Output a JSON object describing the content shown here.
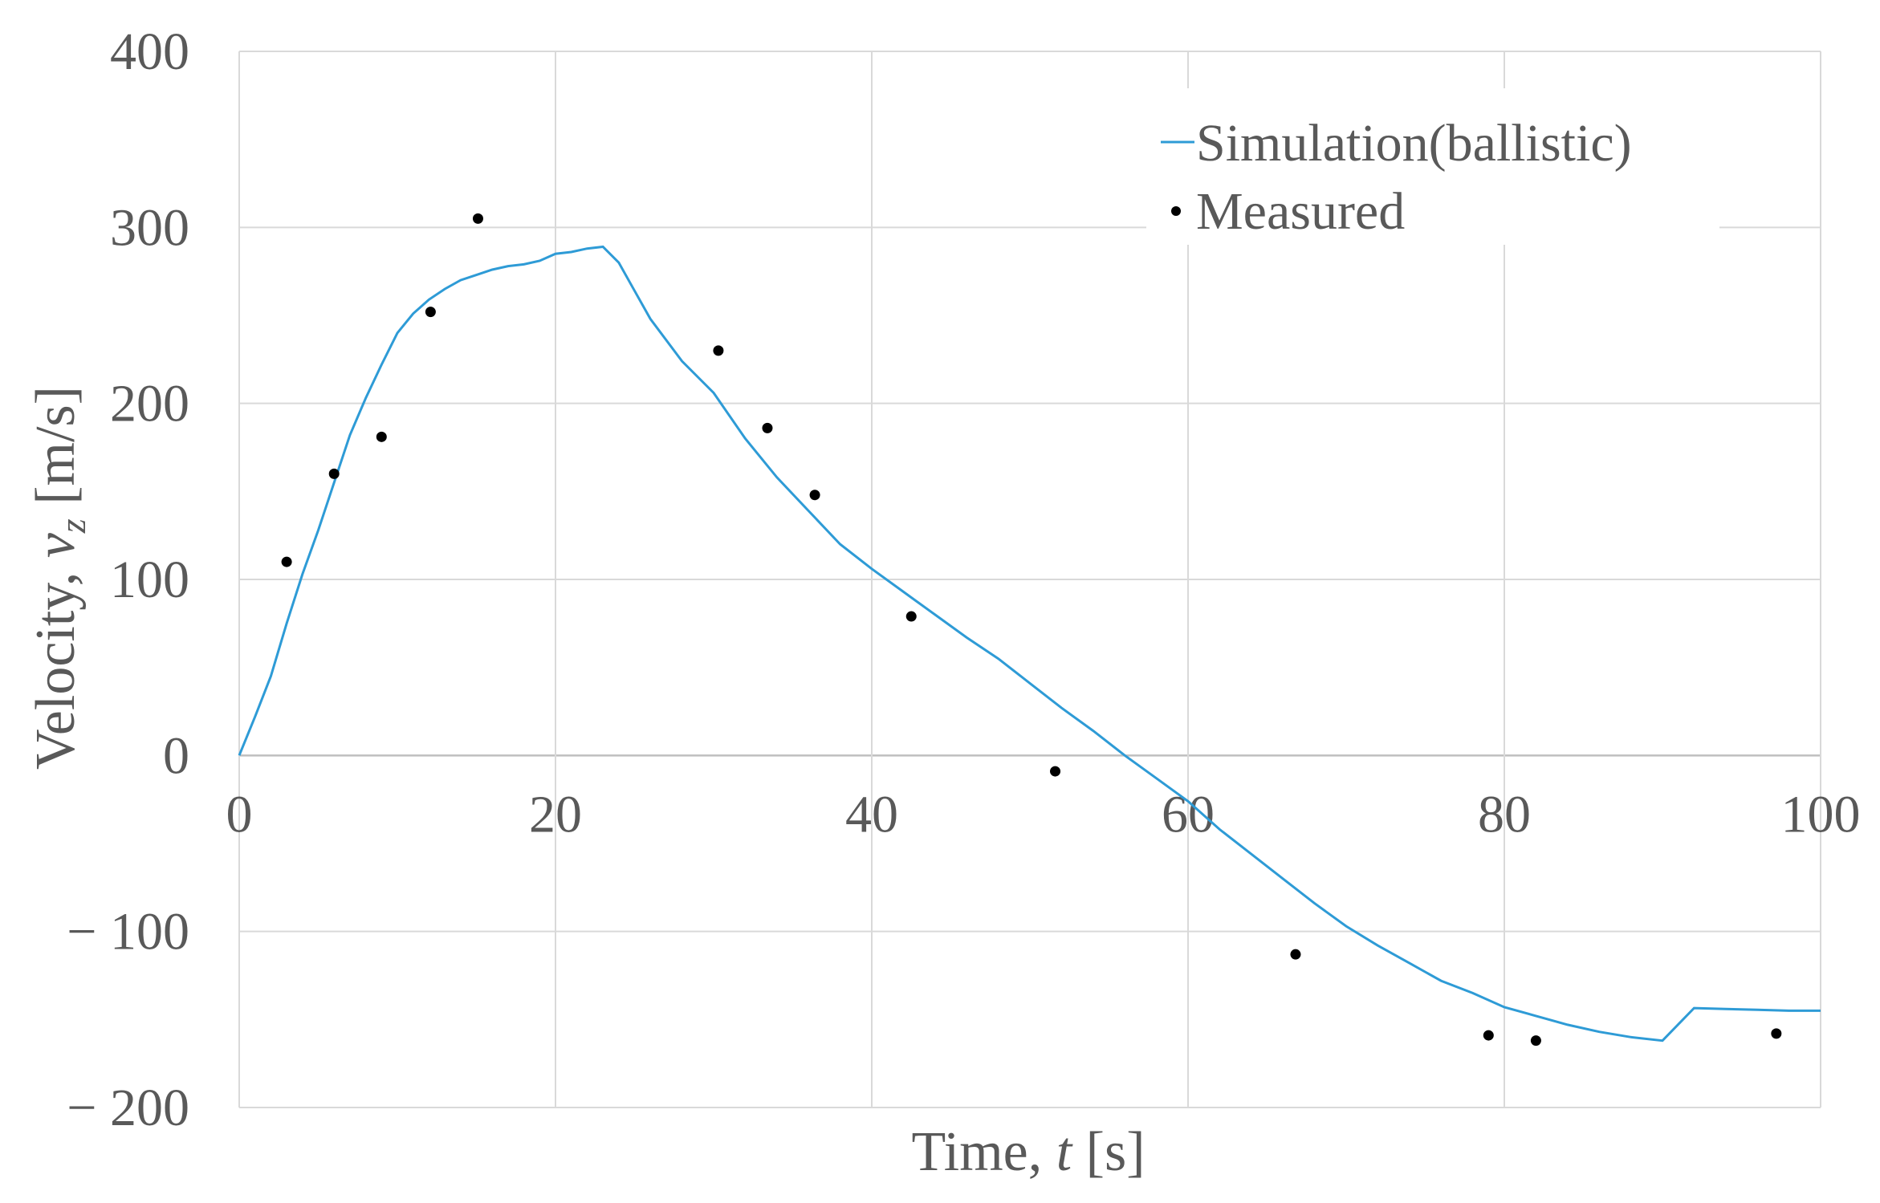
{
  "chart_data": {
    "type": "scatter",
    "title": "",
    "xlabel_prefix": "Time, ",
    "xlabel_var": "t",
    "xlabel_suffix": " [s]",
    "ylabel_prefix": "Velocity, ",
    "ylabel_var": "v",
    "ylabel_sub": "z",
    "ylabel_suffix": " [m/s]",
    "xlim": [
      0,
      100
    ],
    "ylim": [
      -200,
      400
    ],
    "x_ticks": [
      0,
      20,
      40,
      60,
      80,
      100
    ],
    "x_tick_labels": [
      "0",
      "20",
      "40",
      "60",
      "80",
      "100"
    ],
    "y_ticks": [
      400,
      300,
      200,
      100,
      0,
      -100,
      -200
    ],
    "y_tick_labels": [
      "400",
      "300",
      "200",
      "100",
      "0",
      "− 100",
      "− 200"
    ],
    "grid": true,
    "legend_position": "top-right",
    "series": [
      {
        "name": "Simulation(ballistic)",
        "kind": "line",
        "color": "#2e9bd6",
        "x": [
          0,
          1,
          2,
          3,
          4,
          5,
          6,
          7,
          8,
          9,
          10,
          11,
          12,
          13,
          14,
          15,
          16,
          17,
          18,
          19,
          20,
          21,
          22,
          23,
          24,
          25,
          26,
          28,
          30,
          32,
          34,
          36,
          38,
          40,
          42,
          44,
          46,
          48,
          50,
          52,
          54,
          56,
          58,
          60,
          62,
          64,
          66,
          68,
          70,
          72,
          74,
          76,
          78,
          80,
          82,
          84,
          86,
          88,
          90,
          92,
          94,
          96,
          98,
          100
        ],
        "y": [
          0,
          22,
          45,
          75,
          103,
          128,
          155,
          182,
          203,
          222,
          240,
          251,
          259,
          265,
          270,
          273,
          276,
          278,
          279,
          281,
          285,
          286,
          288,
          289,
          280,
          264,
          248,
          224,
          206,
          180,
          158,
          139,
          120,
          106,
          93,
          80,
          67,
          55,
          41,
          27,
          14,
          0,
          -13,
          -26,
          -42,
          -56,
          -70,
          -84,
          -97,
          -108,
          -118,
          -128,
          -135,
          -143,
          -148,
          -153,
          -157,
          -160,
          -162,
          -143.5,
          -144,
          -144.5,
          -145,
          -145
        ]
      },
      {
        "name": "Measured",
        "kind": "scatter",
        "color": "#000000",
        "x": [
          3.0,
          6.0,
          9.0,
          12.1,
          15.1,
          30.3,
          33.4,
          36.4,
          42.5,
          51.6,
          66.8,
          79.0,
          82.0,
          97.2
        ],
        "y": [
          110,
          160,
          181,
          252,
          305,
          230,
          186,
          148,
          79,
          -9,
          -113,
          -159,
          -162,
          -158
        ]
      }
    ]
  }
}
